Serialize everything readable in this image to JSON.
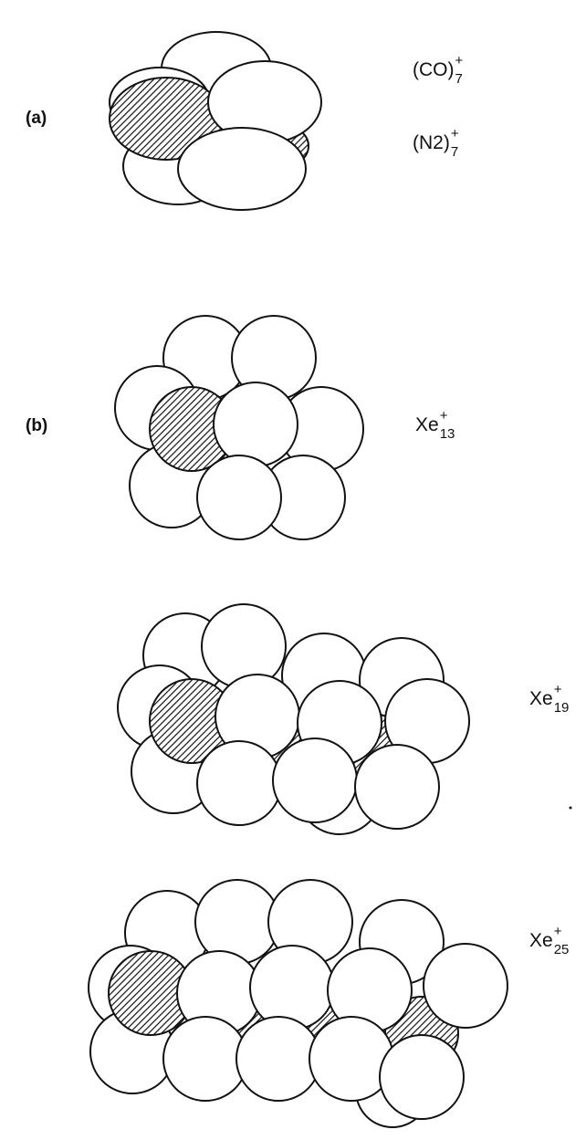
{
  "panels": [
    {
      "label": "(a)",
      "formulas": [
        {
          "base": "(CO)",
          "sub": "7",
          "sup": "+"
        },
        {
          "base": "(N2)",
          "sub": "7",
          "sup": "+"
        }
      ]
    },
    {
      "label": "(b)",
      "formulas": [
        {
          "base": "Xe",
          "sub": "13",
          "sup": "+"
        },
        {
          "base": "Xe",
          "sub": "19",
          "sup": "+"
        },
        {
          "base": "Xe",
          "sub": "25",
          "sup": "+"
        }
      ]
    }
  ]
}
